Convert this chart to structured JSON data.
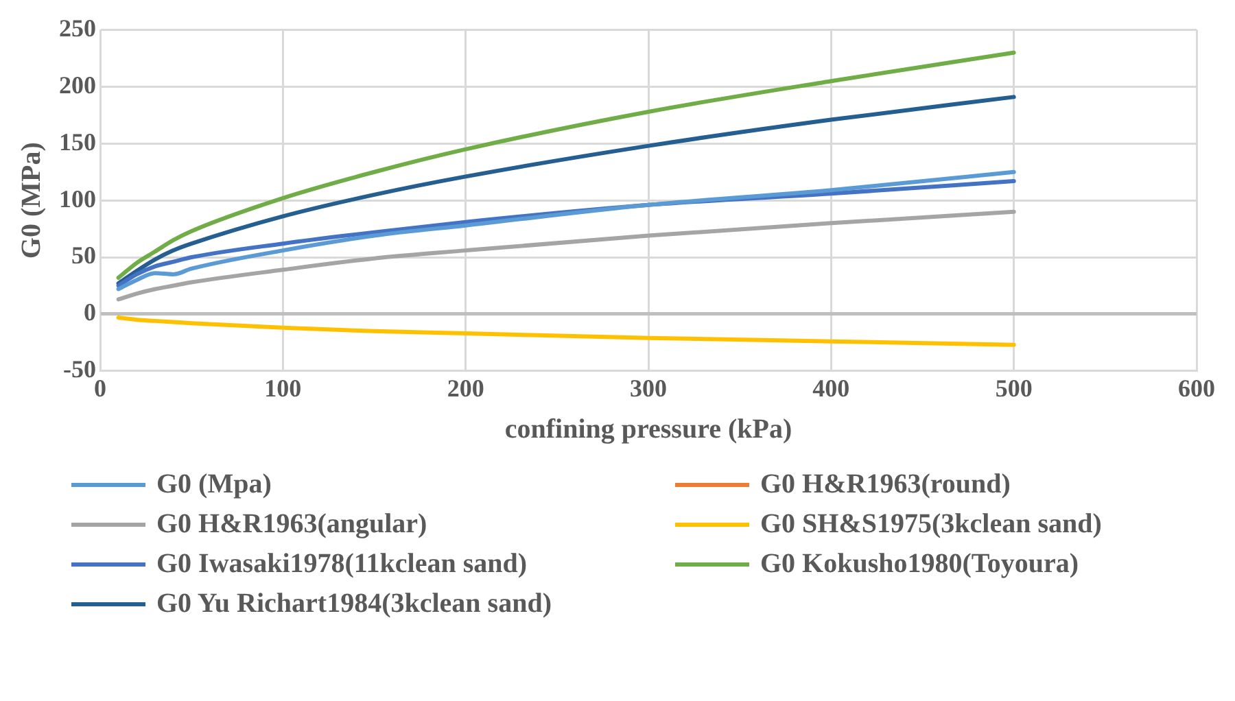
{
  "chart_data": {
    "type": "line",
    "xlabel": "confining pressure (kPa)",
    "ylabel": "G0 (MPa)",
    "xlim": [
      0,
      600
    ],
    "xticks": [
      0,
      100,
      200,
      300,
      400,
      500,
      600
    ],
    "ylim": [
      -50,
      250
    ],
    "yticks": [
      -50,
      0,
      50,
      100,
      150,
      200,
      250
    ],
    "grid": true,
    "legend": "bottom",
    "marker": "none",
    "x": [
      10,
      20,
      30,
      40,
      50,
      100,
      150,
      200,
      300,
      400,
      500
    ],
    "series": [
      {
        "name": "G0 (Mpa)",
        "color": "#5b9bd5",
        "values": [
          22,
          30,
          36,
          35,
          40,
          56,
          69,
          78,
          96,
          109,
          125
        ]
      },
      {
        "name": "G0 H&R1963(round)",
        "color": "#ed7d31",
        "values": [
          null,
          null,
          null,
          null,
          null,
          null,
          null,
          null,
          null,
          null,
          null
        ]
      },
      {
        "name": "G0 H&R1963(angular)",
        "color": "#a5a5a5",
        "values": [
          13,
          18,
          22,
          25,
          28,
          39,
          49,
          56,
          69,
          80,
          90
        ]
      },
      {
        "name": "G0 SH&S1975(3kclean sand)",
        "color": "#ffc000",
        "values": [
          -3,
          -5,
          -6,
          -7,
          -8,
          -12,
          -15,
          -17,
          -21,
          -24,
          -27
        ]
      },
      {
        "name": "G0 Iwasaki1978(11kclean sand)",
        "color": "#4472c4",
        "values": [
          25,
          35,
          42,
          46,
          50,
          62,
          72,
          81,
          96,
          106,
          117
        ]
      },
      {
        "name": "G0 Kokusho1980(Toyoura)",
        "color": "#70ad47",
        "values": [
          32,
          45,
          55,
          65,
          73,
          102,
          125,
          145,
          178,
          205,
          230
        ]
      },
      {
        "name": "G0 Yu Richart1984(3kclean sand)",
        "color": "#255e91",
        "values": [
          27,
          38,
          48,
          56,
          62,
          86,
          105,
          121,
          148,
          171,
          191
        ]
      }
    ]
  }
}
